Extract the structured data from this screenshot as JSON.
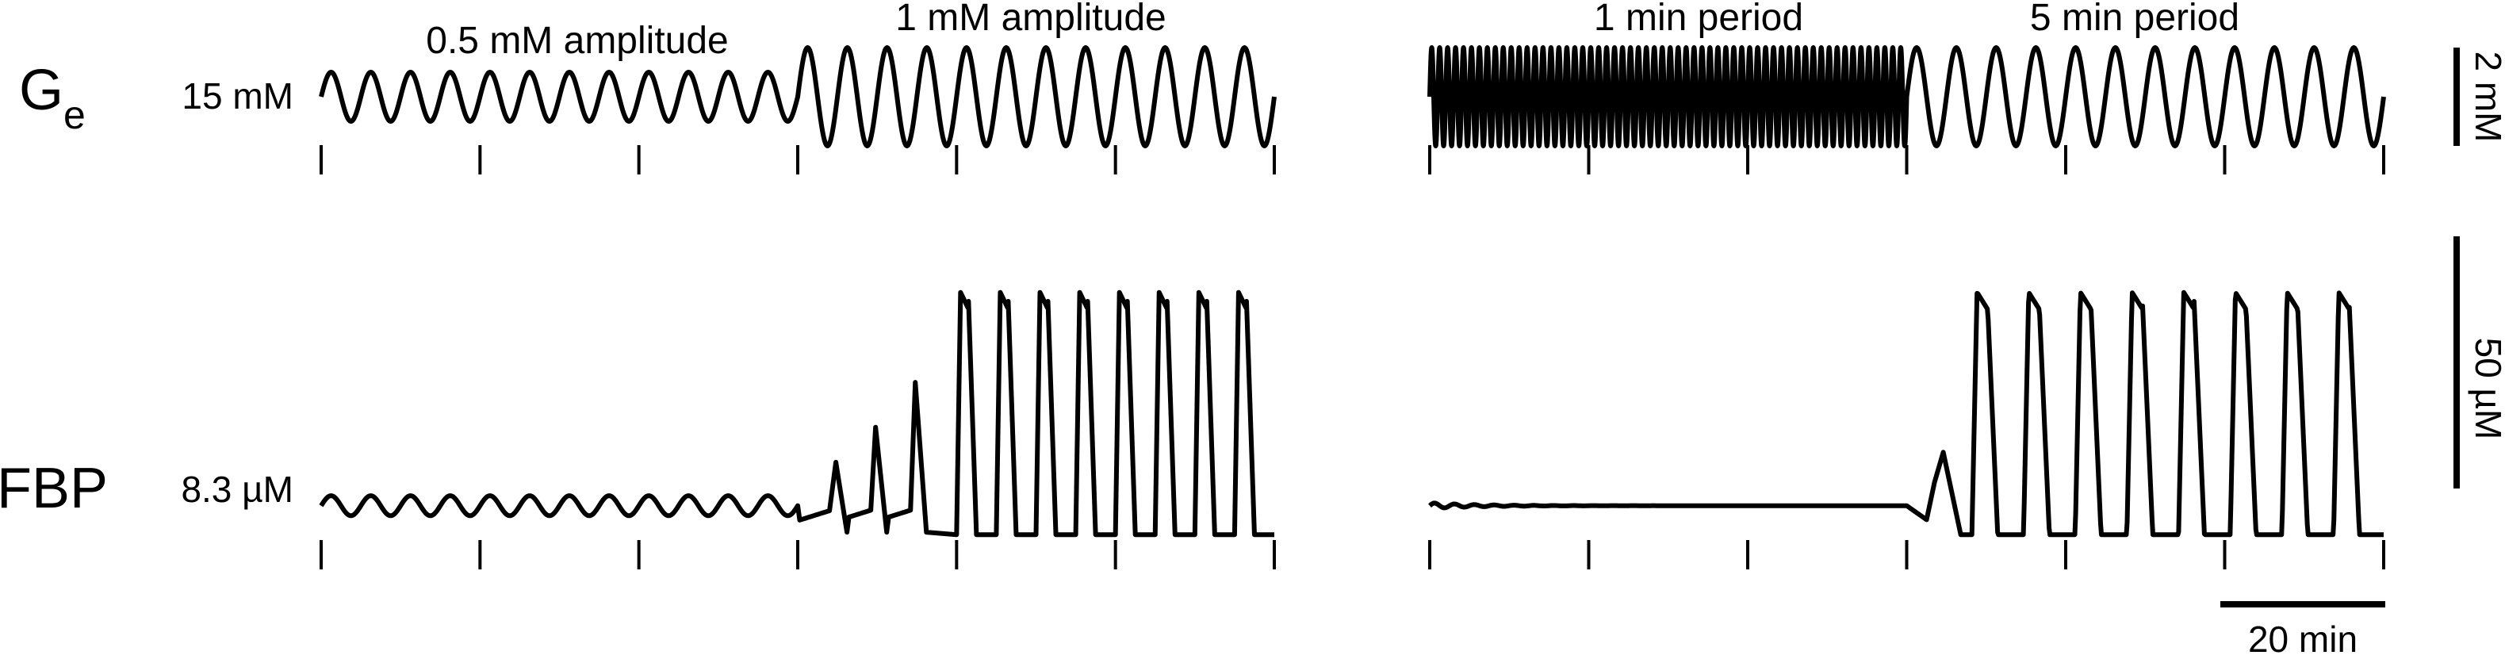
{
  "rows": {
    "ge": {
      "label_main": "G",
      "label_sub": "e",
      "baseline": "15 mM"
    },
    "fbp": {
      "label": "FBP",
      "baseline": "8.3 µM"
    }
  },
  "segments": {
    "amp_low": "0.5 mM amplitude",
    "amp_high": "1 mM amplitude",
    "period_short": "1 min period",
    "period_long": "5 min period"
  },
  "scale_bars": {
    "ge": "2 mM",
    "fbp": "50 µM",
    "time": "20 min"
  },
  "chart_data": {
    "type": "line",
    "x_unit": "min",
    "ticks_min": [
      0,
      20,
      40,
      60,
      80,
      100,
      120
    ],
    "panels": [
      {
        "name": "amplitude",
        "segments": [
          {
            "label": "0.5 mM amplitude",
            "t_range": [
              0,
              60
            ],
            "period_min": 5,
            "ge_amplitude_mM": 0.5
          },
          {
            "label": "1 mM amplitude",
            "t_range": [
              60,
              120
            ],
            "period_min": 5,
            "ge_amplitude_mM": 1.0
          }
        ]
      },
      {
        "name": "period",
        "segments": [
          {
            "label": "1 min period",
            "t_range": [
              0,
              60
            ],
            "period_min": 1,
            "ge_amplitude_mM": 1.0
          },
          {
            "label": "5 min period",
            "t_range": [
              60,
              120
            ],
            "period_min": 5,
            "ge_amplitude_mM": 1.0
          }
        ]
      }
    ],
    "ge_baseline_mM": 15,
    "fbp_baseline_uM": 8.3,
    "fbp_response": {
      "small_oscillation_amplitude_uM": 2,
      "burst_peak_uM": 51,
      "burst_trough_uM": 2.5
    }
  }
}
